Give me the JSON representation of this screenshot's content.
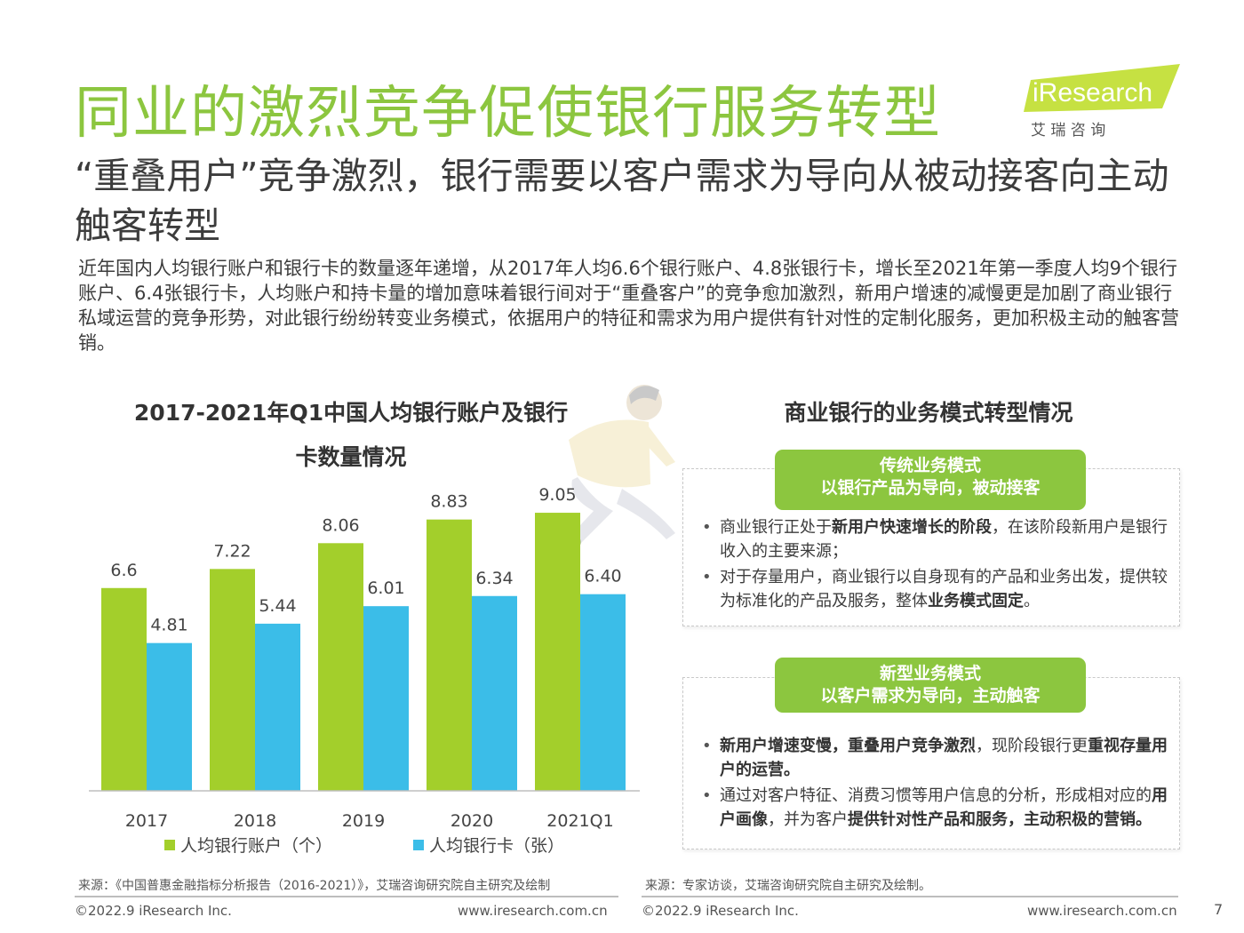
{
  "header": {
    "title": "同业的激烈竞争促使银行服务转型",
    "logo_text": "iResearch",
    "logo_cn": "艾 瑞 咨 询",
    "subtitle": "“重叠用户”竞争激烈，银行需要以客户需求为导向从被动接客向主动触客转型"
  },
  "intro": "近年国内人均银行账户和银行卡的数量逐年递增，从2017年人均6.6个银行账户、4.8张银行卡，增长至2021年第一季度人均9个银行账户、6.4张银行卡，人均账户和持卡量的增加意味着银行间对于“重叠客户”的竞争愈加激烈，新用户增速的减慢更是加剧了商业银行私域运营的竞争形势，对此银行纷纷转变业务模式，依据用户的特征和需求为用户提供有针对性的定制化服务，更加积极主动的触客营销。",
  "chart_data": {
    "type": "bar",
    "title": "2017-2021年Q1中国人均银行账户及银行卡数量情况",
    "categories": [
      "2017",
      "2018",
      "2019",
      "2020",
      "2021Q1"
    ],
    "series": [
      {
        "name": "人均银行账户（个）",
        "values": [
          6.6,
          7.22,
          8.06,
          8.83,
          9.05
        ],
        "labels": [
          "6.6",
          "7.22",
          "8.06",
          "8.83",
          "9.05"
        ],
        "color": "#a3cf2b"
      },
      {
        "name": "人均银行卡（张）",
        "values": [
          4.81,
          5.44,
          6.01,
          6.34,
          6.4
        ],
        "labels": [
          "4.81",
          "5.44",
          "6.01",
          "6.34",
          "6.40"
        ],
        "color": "#3bbde8"
      }
    ],
    "ylim": [
      0,
      10.7
    ],
    "grid": false,
    "legend": "bottom"
  },
  "right_panel": {
    "title": "商业银行的业务模式转型情况",
    "traditional": {
      "heading": "传统业务模式",
      "subheading": "以银行产品为导向，被动接客",
      "b1_pre": "商业银行正处于",
      "b1_em": "新用户快速增长的阶段",
      "b1_post": "，在该阶段新用户是银行收入的主要来源；",
      "b2_pre": "对于存量用户，商业银行以自身现有的产品和业务出发，提供较为标准化的产品及服务，整体",
      "b2_em": "业务模式固定",
      "b2_post": "。"
    },
    "new_model": {
      "heading": "新型业务模式",
      "subheading": "以客户需求为导向，主动触客",
      "b1_em1": "新用户增速变慢，重叠用户竞争激烈",
      "b1_mid": "，现阶段银行更",
      "b1_em2": "重视存量用户的运营。",
      "b2_pre": "通过对客户特征、消费习惯等用户信息的分析，形成相对应的",
      "b2_em1": "用户画像",
      "b2_mid": "，并为客户",
      "b2_em2": "提供针对性产品和服务，主动积极的营销。"
    }
  },
  "footer": {
    "source_left": "来源：《中国普惠金融指标分析报告（2016-2021）》，艾瑞咨询研究院自主研究及绘制",
    "source_right": "来源：专家访谈，艾瑞咨询研究院自主研究及绘制。",
    "copyright": "©2022.9 iResearch Inc.",
    "website": "www.iresearch.com.cn",
    "page": "7"
  },
  "colors": {
    "brand_green": "#8cc63f",
    "bar_green": "#a3cf2b",
    "bar_blue": "#3bbde8"
  }
}
